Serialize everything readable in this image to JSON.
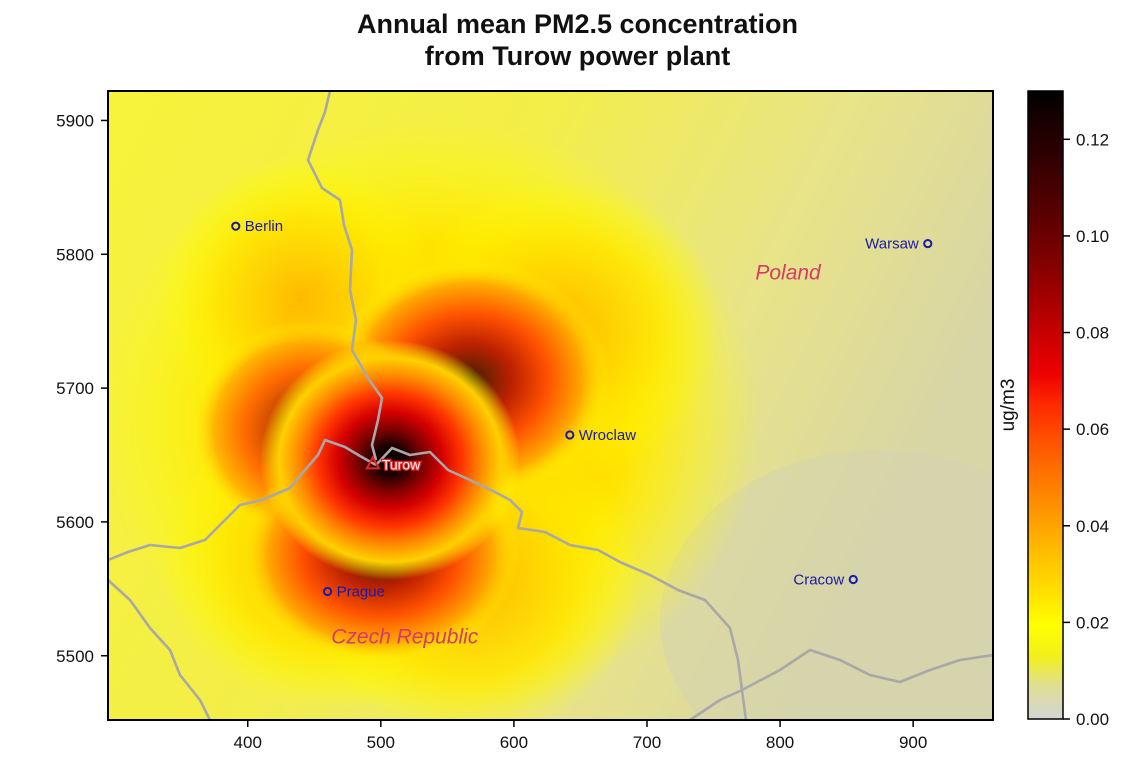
{
  "title_line1": "Annual mean PM2.5 concentration",
  "title_line2": "from Turow power plant",
  "map": {
    "x_ticks": [
      400,
      500,
      600,
      700,
      800,
      900
    ],
    "y_ticks": [
      5500,
      5600,
      5700,
      5800,
      5900
    ],
    "x_range": [
      295,
      960
    ],
    "y_range": [
      5452,
      5922
    ],
    "cities": [
      {
        "name": "Berlin",
        "x": 391,
        "y": 5821,
        "label_side": "right"
      },
      {
        "name": "Warsaw",
        "x": 911,
        "y": 5808,
        "label_side": "left"
      },
      {
        "name": "Wroclaw",
        "x": 642,
        "y": 5665,
        "label_side": "right"
      },
      {
        "name": "Prague",
        "x": 460,
        "y": 5548,
        "label_side": "right"
      },
      {
        "name": "Cracow",
        "x": 855,
        "y": 5557,
        "label_side": "left"
      }
    ],
    "source": {
      "name": "Turow",
      "x": 494,
      "y": 5643
    },
    "countries": [
      {
        "name": "Poland",
        "x": 806,
        "y": 5781
      },
      {
        "name": "Czech Republic",
        "x": 518,
        "y": 5509
      }
    ],
    "colors": {
      "city": "#1a1aa8",
      "source": "#ee2222",
      "country": "#d63a6a",
      "border": "#a8a8a8"
    }
  },
  "colorbar": {
    "label": "ug/m3",
    "ticks": [
      "0.00",
      "0.02",
      "0.04",
      "0.06",
      "0.08",
      "0.10",
      "0.12"
    ],
    "tick_values": [
      0,
      0.02,
      0.04,
      0.06,
      0.08,
      0.1,
      0.12
    ],
    "max": 0.13,
    "stops": [
      "#d5d5d5",
      "#dede99",
      "#f2f01a",
      "#ffff00",
      "#ffe100",
      "#ffc600",
      "#ffa800",
      "#ff8a00",
      "#ff6c00",
      "#ff4d00",
      "#ff2a00",
      "#ee0000",
      "#d00000",
      "#b00000",
      "#920000",
      "#760000",
      "#5c0000",
      "#440000",
      "#2e0000",
      "#1a0000",
      "#000000"
    ]
  }
}
